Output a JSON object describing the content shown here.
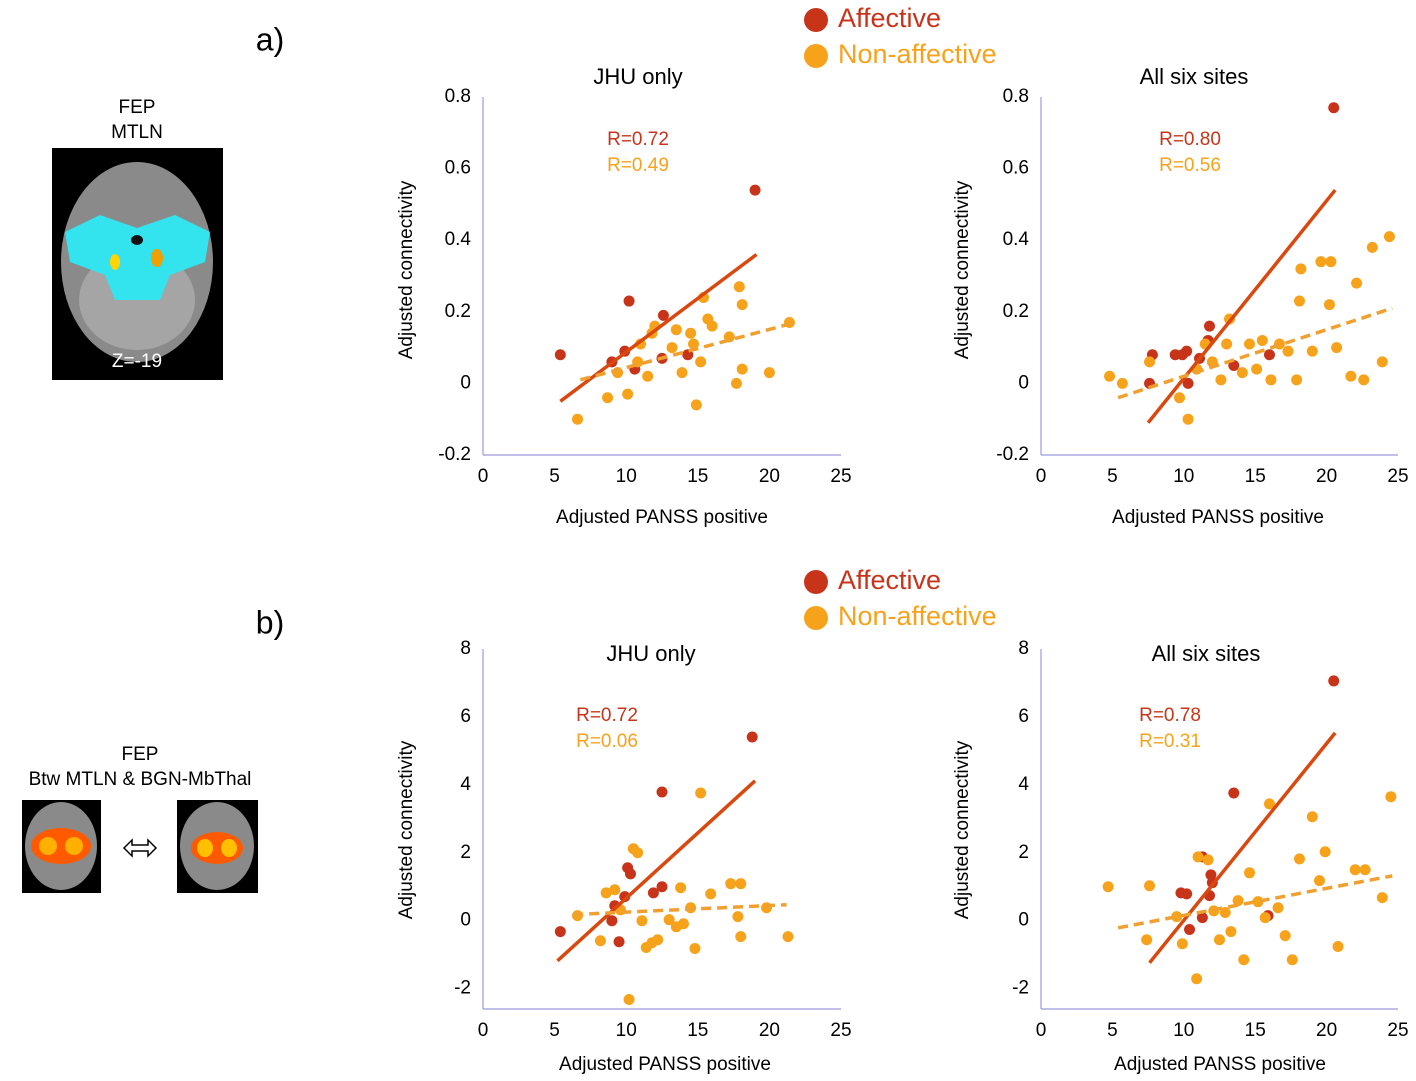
{
  "figure": {
    "panel_labels": [
      "a)",
      "b)"
    ],
    "brain_images": [
      {
        "labels": [
          "FEP",
          "MTLN"
        ],
        "slice": "Z=-19"
      },
      {
        "labels": [
          "FEP",
          "Btw MTLN & BGN-MbThal"
        ]
      }
    ]
  },
  "chart_data": [
    {
      "type": "scatter",
      "title": "JHU only",
      "xlabel": "Adjusted PANSS positive",
      "ylabel": "Adjusted connectivity",
      "xlim": [
        0,
        25
      ],
      "ylim": [
        -0.2,
        0.8
      ],
      "xticks": [
        0,
        5,
        10,
        15,
        20,
        25
      ],
      "yticks": [
        -0.2,
        0,
        0.2,
        0.4,
        0.6,
        0.8
      ],
      "series": [
        {
          "name": "Affective",
          "color": "#c8341a",
          "line_color": "#d9480f",
          "line_style": "solid",
          "annotation": "R=0.72",
          "x": [
            5.4,
            10.2,
            19.0,
            9.0,
            9.9,
            10.6,
            12.6,
            12.5,
            14.3
          ],
          "y": [
            0.08,
            0.23,
            0.54,
            0.06,
            0.09,
            0.04,
            0.19,
            0.07,
            0.08
          ],
          "fit": {
            "x": [
              5.4,
              19.1
            ],
            "y": [
              -0.05,
              0.36
            ]
          }
        },
        {
          "name": "Non-affective",
          "color": "#f7a21b",
          "line_color": "#f0a030",
          "line_style": "dashed",
          "annotation": "R=0.49",
          "x": [
            6.6,
            8.7,
            9.4,
            10.1,
            10.8,
            11.0,
            11.5,
            11.8,
            12.0,
            13.2,
            13.5,
            13.9,
            14.5,
            14.7,
            14.9,
            15.2,
            15.4,
            15.7,
            16.0,
            17.2,
            17.7,
            17.9,
            18.1,
            18.1,
            20.0,
            21.4
          ],
          "y": [
            -0.1,
            -0.04,
            0.03,
            -0.03,
            0.06,
            0.11,
            0.02,
            0.14,
            0.16,
            0.1,
            0.15,
            0.03,
            0.14,
            0.11,
            -0.06,
            0.06,
            0.24,
            0.18,
            0.16,
            0.13,
            0.0,
            0.27,
            0.04,
            0.22,
            0.03,
            0.17
          ],
          "fit": {
            "x": [
              6.8,
              21.8
            ],
            "y": [
              0.01,
              0.17
            ]
          }
        }
      ]
    },
    {
      "type": "scatter",
      "title": "All six sites",
      "xlabel": "Adjusted PANSS positive",
      "ylabel": "Adjusted connectivity",
      "xlim": [
        0,
        25
      ],
      "ylim": [
        -0.2,
        0.8
      ],
      "xticks": [
        0,
        5,
        10,
        15,
        20,
        25
      ],
      "yticks": [
        -0.2,
        0,
        0.2,
        0.4,
        0.6,
        0.8
      ],
      "series": [
        {
          "name": "Affective",
          "color": "#c8341a",
          "line_color": "#d9480f",
          "line_style": "solid",
          "annotation": "R=0.80",
          "x": [
            20.5,
            7.6,
            7.8,
            9.4,
            9.9,
            10.3,
            11.1,
            11.8,
            11.7,
            13.5,
            16.0,
            10.2
          ],
          "y": [
            0.77,
            0.0,
            0.08,
            0.08,
            0.08,
            0.0,
            0.07,
            0.16,
            0.12,
            0.05,
            0.08,
            0.09
          ],
          "fit": {
            "x": [
              7.5,
              20.6
            ],
            "y": [
              -0.11,
              0.54
            ]
          }
        },
        {
          "name": "Non-affective",
          "color": "#f7a21b",
          "line_color": "#f0a030",
          "line_style": "dashed",
          "annotation": "R=0.56",
          "x": [
            4.8,
            7.6,
            9.7,
            10.3,
            10.9,
            11.5,
            12.0,
            12.6,
            13.0,
            13.2,
            14.1,
            14.6,
            15.1,
            15.5,
            16.1,
            16.7,
            17.3,
            17.9,
            18.1,
            18.2,
            19.0,
            19.6,
            20.2,
            20.3,
            20.7,
            21.7,
            22.1,
            22.6,
            23.2,
            23.9,
            24.4,
            5.7
          ],
          "y": [
            0.02,
            0.06,
            -0.04,
            -0.1,
            0.04,
            0.11,
            0.06,
            0.01,
            0.11,
            0.18,
            0.03,
            0.11,
            0.04,
            0.12,
            0.01,
            0.11,
            0.09,
            0.01,
            0.23,
            0.32,
            0.09,
            0.34,
            0.22,
            0.34,
            0.1,
            0.02,
            0.28,
            0.01,
            0.38,
            0.06,
            0.41,
            0.0
          ],
          "fit": {
            "x": [
              5.4,
              24.6
            ],
            "y": [
              -0.04,
              0.21
            ]
          }
        }
      ]
    },
    {
      "type": "scatter",
      "title": "JHU only",
      "xlabel": "Adjusted PANSS positive",
      "ylabel": "Adjusted connectivity",
      "xlim": [
        0,
        25
      ],
      "ylim": [
        -2.6,
        8
      ],
      "xticks": [
        0,
        5,
        10,
        15,
        20,
        25
      ],
      "yticks": [
        -2,
        0,
        2,
        4,
        6,
        8
      ],
      "series": [
        {
          "name": "Affective",
          "color": "#c8341a",
          "line_color": "#d9480f",
          "line_style": "solid",
          "annotation": "R=0.72",
          "x": [
            5.4,
            9.0,
            9.5,
            9.9,
            10.1,
            10.3,
            11.9,
            12.5,
            12.5,
            18.8,
            9.2
          ],
          "y": [
            -0.32,
            0.0,
            -0.62,
            0.71,
            1.56,
            1.38,
            0.82,
            3.79,
            1.0,
            5.41,
            0.44
          ],
          "fit": {
            "x": [
              5.2,
              19.0
            ],
            "y": [
              -1.18,
              4.12
            ]
          }
        },
        {
          "name": "Non-affective",
          "color": "#f7a21b",
          "line_color": "#f0a030",
          "line_style": "dashed",
          "annotation": "R=0.06",
          "x": [
            6.6,
            8.2,
            8.6,
            9.6,
            10.2,
            10.5,
            10.8,
            11.1,
            11.4,
            11.8,
            12.2,
            13.0,
            13.5,
            13.8,
            14.0,
            14.5,
            14.8,
            15.2,
            15.9,
            17.3,
            17.8,
            18.0,
            18.0,
            19.8,
            21.3,
            9.2
          ],
          "y": [
            0.15,
            -0.59,
            0.82,
            0.32,
            -2.32,
            2.12,
            2.0,
            0.0,
            -0.79,
            -0.65,
            -0.56,
            0.03,
            -0.18,
            0.97,
            -0.09,
            0.38,
            -0.82,
            3.76,
            0.79,
            1.09,
            0.12,
            -0.47,
            1.09,
            0.38,
            -0.47,
            0.91
          ],
          "fit": {
            "x": [
              6.3,
              21.2
            ],
            "y": [
              0.18,
              0.47
            ]
          }
        }
      ]
    },
    {
      "type": "scatter",
      "title": "All six sites",
      "xlabel": "Adjusted PANSS positive",
      "ylabel": "Adjusted connectivity",
      "xlim": [
        0,
        25
      ],
      "ylim": [
        -2.6,
        8
      ],
      "xticks": [
        0,
        5,
        10,
        15,
        20,
        25
      ],
      "yticks": [
        -2,
        0,
        2,
        4,
        6,
        8
      ],
      "series": [
        {
          "name": "Affective",
          "color": "#c8341a",
          "line_color": "#d9480f",
          "line_style": "solid",
          "annotation": "R=0.78",
          "x": [
            20.5,
            13.5,
            9.8,
            10.2,
            10.4,
            11.3,
            11.9,
            12.0,
            11.3,
            11.8,
            15.9
          ],
          "y": [
            7.06,
            3.76,
            0.82,
            0.79,
            -0.26,
            0.09,
            1.35,
            1.12,
            1.88,
            0.74,
            0.15
          ],
          "fit": {
            "x": [
              7.6,
              20.6
            ],
            "y": [
              -1.24,
              5.53
            ]
          }
        },
        {
          "name": "Non-affective",
          "color": "#f7a21b",
          "line_color": "#f0a030",
          "line_style": "dashed",
          "annotation": "R=0.31",
          "x": [
            4.7,
            7.6,
            7.4,
            9.9,
            10.9,
            11.0,
            11.7,
            12.1,
            12.5,
            12.9,
            13.3,
            13.8,
            14.2,
            14.6,
            15.2,
            15.7,
            16.0,
            16.6,
            17.1,
            17.6,
            18.1,
            19.0,
            19.5,
            19.9,
            20.8,
            22.0,
            22.7,
            23.9,
            24.5,
            9.5
          ],
          "y": [
            1.0,
            1.03,
            -0.56,
            -0.68,
            -1.71,
            1.88,
            1.79,
            0.29,
            -0.56,
            0.24,
            -0.32,
            0.59,
            -1.15,
            1.41,
            0.56,
            0.09,
            3.44,
            0.38,
            -0.44,
            -1.15,
            1.82,
            3.06,
            1.18,
            2.03,
            -0.76,
            1.5,
            1.5,
            0.68,
            3.65,
            0.12
          ],
          "fit": {
            "x": [
              5.4,
              24.6
            ],
            "y": [
              -0.21,
              1.32
            ]
          }
        }
      ]
    }
  ]
}
